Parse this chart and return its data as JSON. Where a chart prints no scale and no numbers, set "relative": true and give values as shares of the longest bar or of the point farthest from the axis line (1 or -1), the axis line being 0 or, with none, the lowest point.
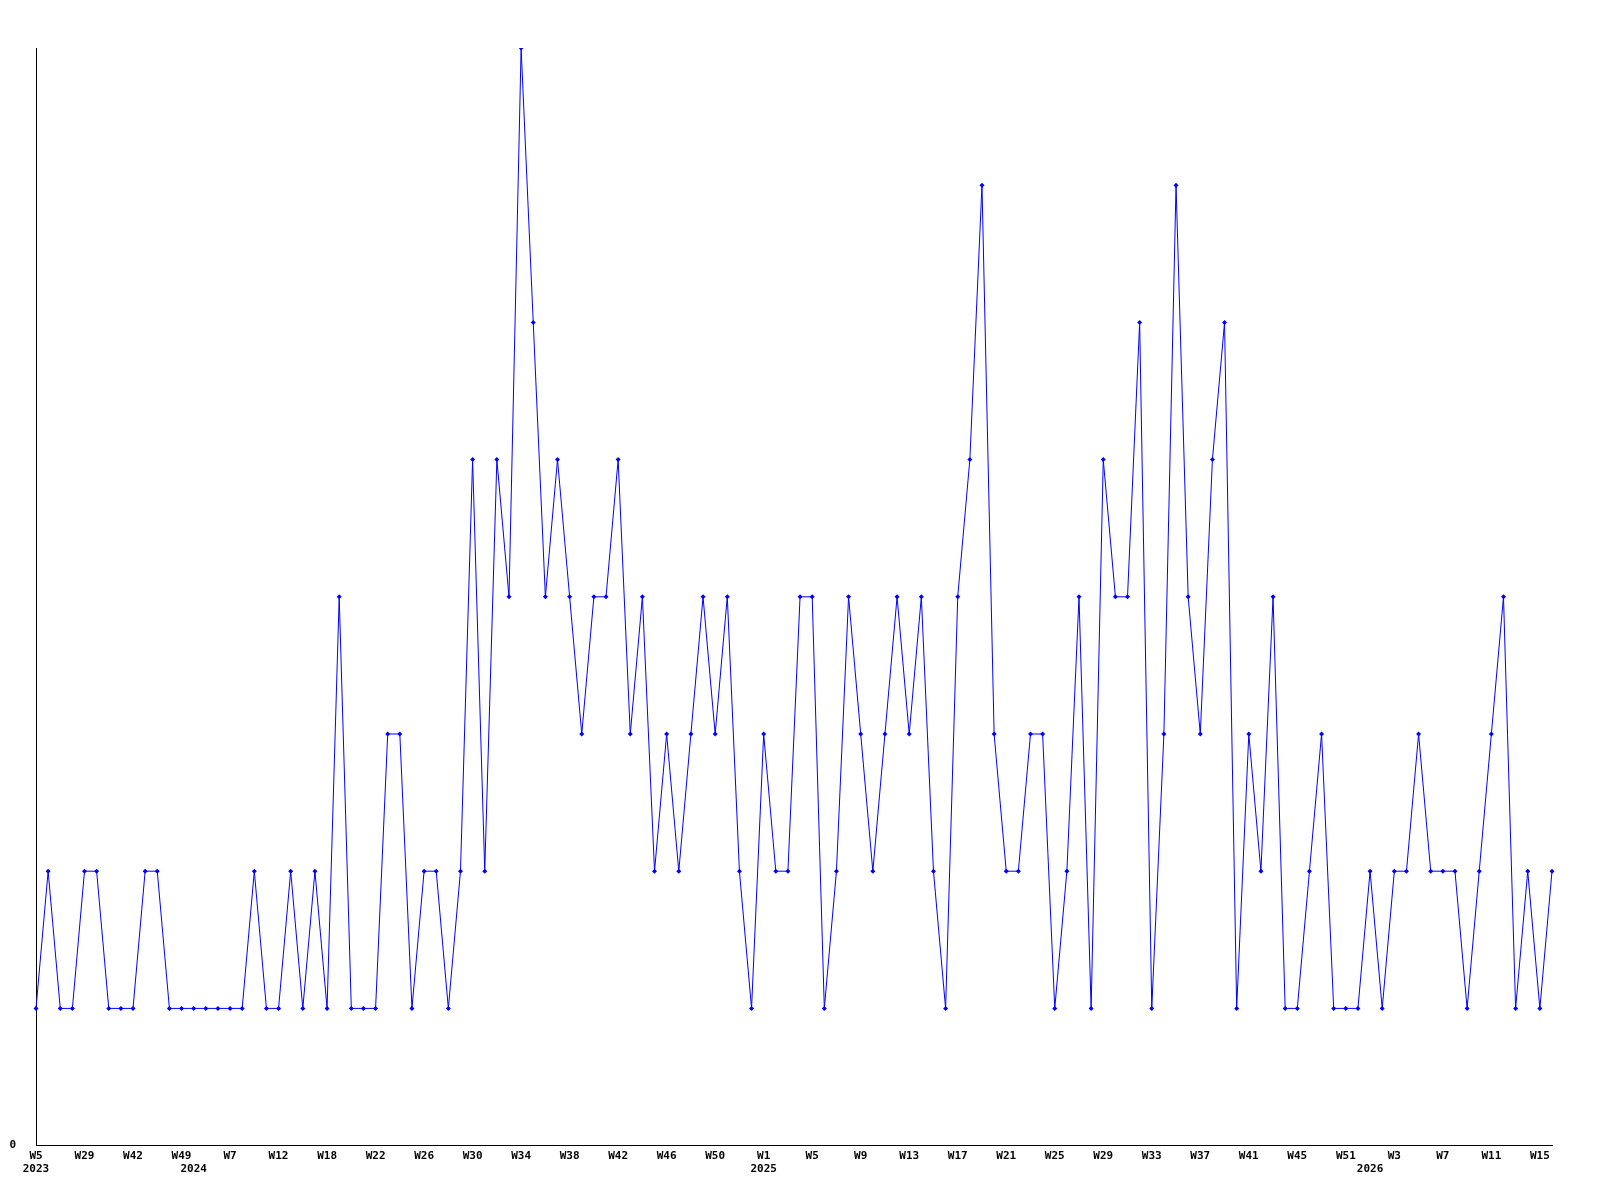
{
  "chart_data": {
    "type": "line",
    "relative": true,
    "color": "#0000ff",
    "marker": "diamond",
    "grid": false,
    "legend": false,
    "categories": [
      "W5\n2023",
      null,
      null,
      null,
      "W29",
      null,
      null,
      null,
      "W42",
      null,
      null,
      null,
      "W49",
      "\n2024",
      null,
      null,
      "W7",
      null,
      null,
      null,
      "W12",
      null,
      null,
      null,
      "W18",
      null,
      null,
      null,
      "W22",
      null,
      null,
      null,
      "W26",
      null,
      null,
      null,
      "W30",
      null,
      null,
      null,
      "W34",
      null,
      null,
      null,
      "W38",
      null,
      null,
      null,
      "W42",
      null,
      null,
      null,
      "W46",
      null,
      null,
      null,
      "W50",
      null,
      null,
      null,
      "W1\n2025",
      null,
      null,
      null,
      "W5",
      null,
      null,
      null,
      "W9",
      null,
      null,
      null,
      "W13",
      null,
      null,
      null,
      "W17",
      null,
      null,
      null,
      "W21",
      null,
      null,
      null,
      "W25",
      null,
      null,
      null,
      "W29",
      null,
      null,
      null,
      "W33",
      null,
      null,
      null,
      "W37",
      null,
      null,
      null,
      "W41",
      null,
      null,
      null,
      "W45",
      null,
      null,
      null,
      "W51",
      null,
      "\n2026",
      null,
      "W3",
      null,
      null,
      null,
      "W7",
      null,
      null,
      null,
      "W11",
      null,
      null,
      null,
      "W15",
      null
    ],
    "values": [
      0.125,
      0.25,
      0.125,
      0.125,
      0.25,
      0.25,
      0.125,
      0.125,
      0.125,
      0.25,
      0.25,
      0.125,
      0.125,
      0.125,
      0.125,
      0.125,
      0.125,
      0.125,
      0.25,
      0.125,
      0.125,
      0.25,
      0.125,
      0.25,
      0.125,
      0.5,
      0.125,
      0.125,
      0.125,
      0.375,
      0.375,
      0.125,
      0.25,
      0.25,
      0.125,
      0.25,
      0.625,
      0.25,
      0.625,
      0.5,
      1,
      0.75,
      0.5,
      0.625,
      0.5,
      0.375,
      0.5,
      0.5,
      0.625,
      0.375,
      0.5,
      0.25,
      0.375,
      0.25,
      0.375,
      0.5,
      0.375,
      0.5,
      0.25,
      0.125,
      0.375,
      0.25,
      0.25,
      0.5,
      0.5,
      0.125,
      0.25,
      0.5,
      0.375,
      0.25,
      0.375,
      0.5,
      0.375,
      0.5,
      0.25,
      0.125,
      0.5,
      0.625,
      0.875,
      0.375,
      0.25,
      0.25,
      0.375,
      0.375,
      0.125,
      0.25,
      0.5,
      0.125,
      0.625,
      0.5,
      0.5,
      0.75,
      0.125,
      0.375,
      0.875,
      0.5,
      0.375,
      0.625,
      0.75,
      0.125,
      0.375,
      0.25,
      0.5,
      0.125,
      0.125,
      0.25,
      0.375,
      0.125,
      0.125,
      0.125,
      0.25,
      0.125,
      0.25,
      0.25,
      0.375,
      0.25,
      0.25,
      0.25,
      0.125,
      0.25,
      0.375,
      0.5,
      0.125,
      0.25,
      0.125,
      0.25
    ],
    "annotations": [
      "0"
    ]
  }
}
